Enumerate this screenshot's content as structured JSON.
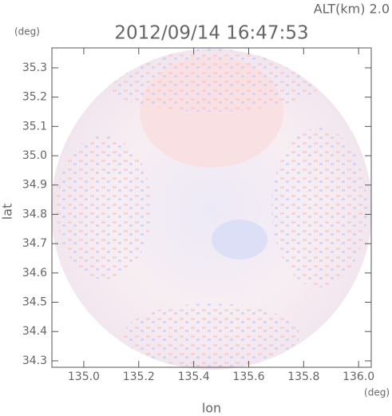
{
  "chart_data": {
    "type": "radar-field",
    "altitude_label": "ALT(km) 2.0",
    "title": "2012/09/14 16:47:53",
    "y_unit": "(deg)",
    "x_unit": "(deg)",
    "ylabel": "lat",
    "xlabel": "lon",
    "xlim": [
      134.884,
      136.046
    ],
    "ylim": [
      34.278,
      35.368
    ],
    "xticks": [
      {
        "value": 135,
        "label": "135.0"
      },
      135.2,
      135.4,
      135.6,
      135.8,
      {
        "value": 136,
        "label": "136.0"
      }
    ],
    "yticks": [
      34.3,
      34.4,
      34.5,
      34.6,
      34.7,
      34.8,
      34.9,
      {
        "value": 35,
        "label": "35.0"
      },
      35.1,
      35.2,
      35.3
    ]
  }
}
